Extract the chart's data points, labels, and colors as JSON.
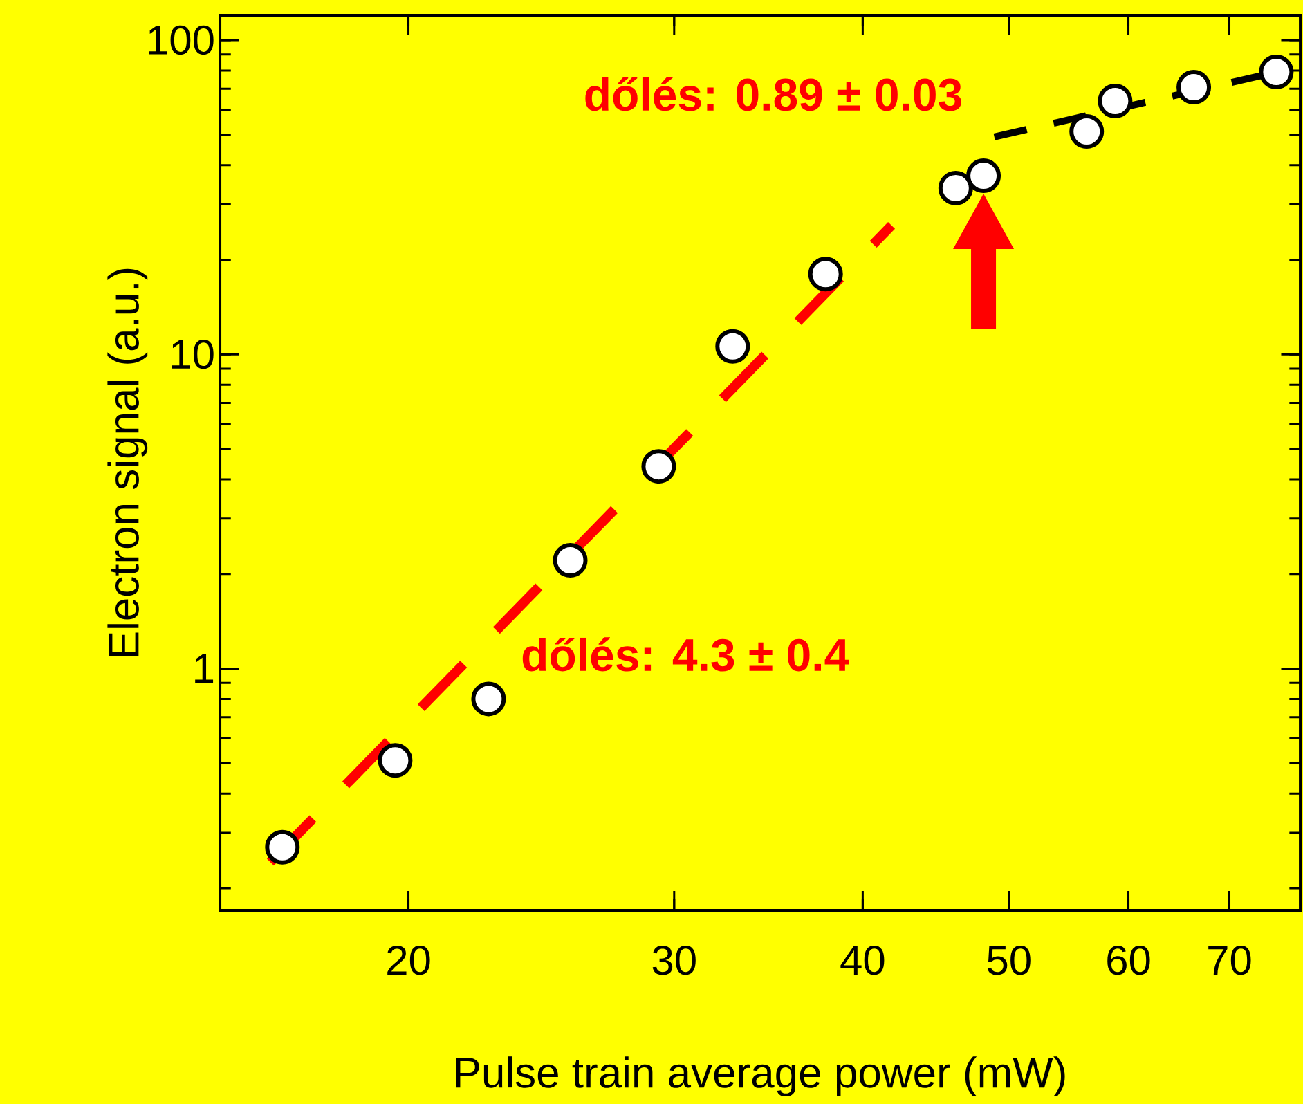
{
  "chart_data": {
    "type": "scatter",
    "xlabel": "Pulse train average power (mW)",
    "ylabel": "Electron signal (a.u.)",
    "log": "xy",
    "xlim": [
      15,
      78
    ],
    "ylim": [
      0.17,
      120
    ],
    "xticks": [
      20,
      30,
      40,
      50,
      60,
      70
    ],
    "yticks": [
      1,
      10,
      100
    ],
    "grid": false,
    "marker": "circle",
    "series": [
      {
        "color": "#ffffff",
        "x": [
          16.5,
          19.6,
          22.6,
          25.6,
          29.3,
          32.8,
          37.8,
          46.1,
          48.1,
          56.3,
          58.8,
          66.3,
          75.2
        ],
        "values": [
          0.27,
          0.51,
          0.8,
          2.21,
          4.4,
          10.6,
          18.0,
          33.8,
          37.0,
          51.2,
          64.0,
          70.8,
          79.2
        ]
      },
      {
        "type": "line",
        "color": "#ff0000",
        "line_style": "dashed",
        "marker": "none",
        "x": [
          16.2,
          41.8
        ],
        "values": [
          0.242,
          25.7
        ]
      },
      {
        "type": "line",
        "color": "#000000",
        "line_style": "dashed",
        "marker": "none",
        "x": [
          48.9,
          76.8
        ],
        "values": [
          49.2,
          80.9
        ]
      }
    ],
    "annotations": [
      "dőlés: 4.3 ± 0.4",
      "dőlés: 0.89 ± 0.03"
    ]
  }
}
